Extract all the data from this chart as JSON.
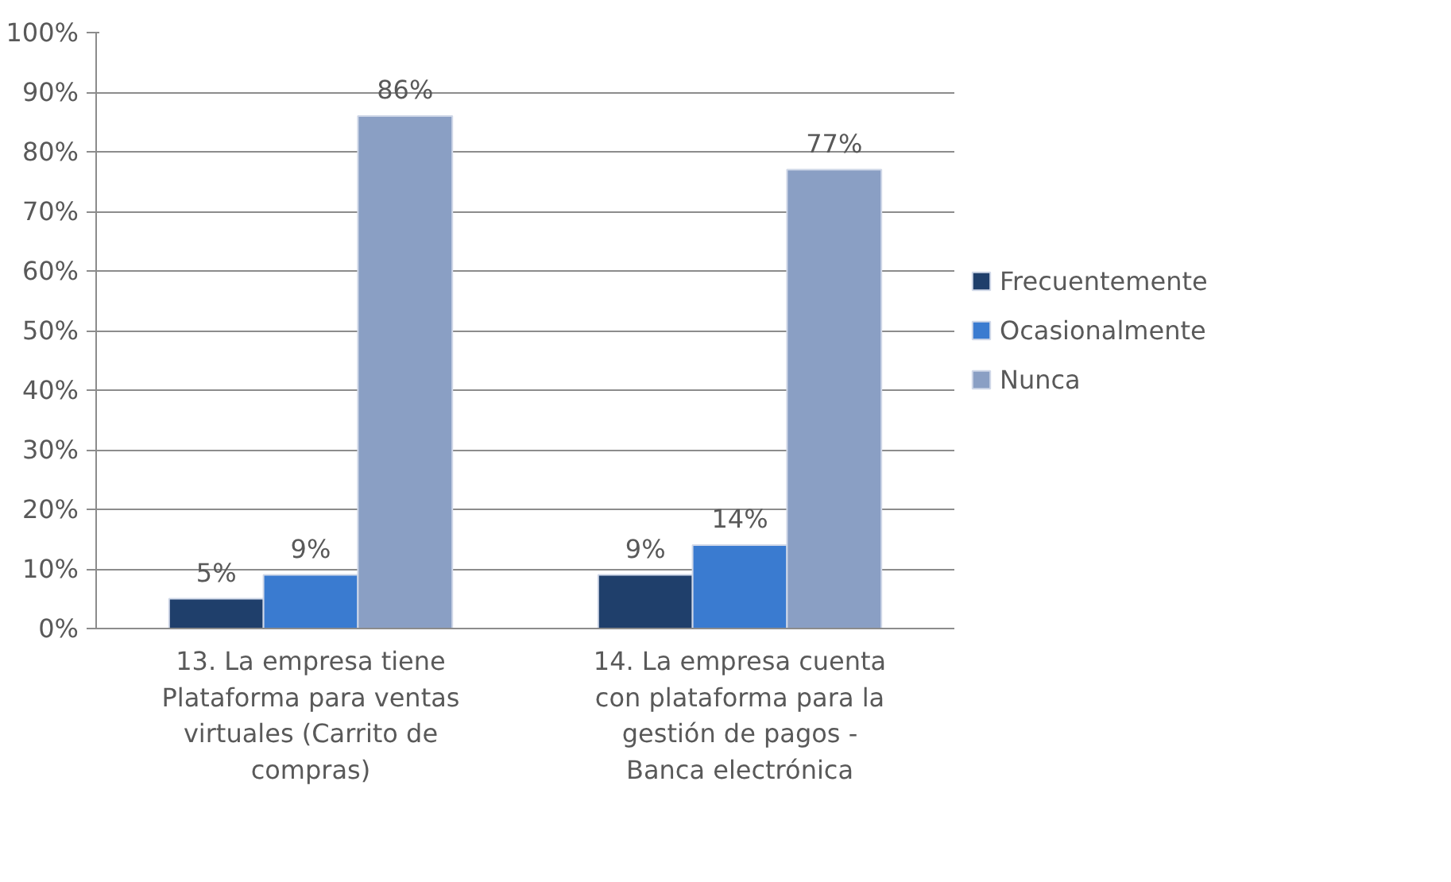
{
  "chart_data": {
    "type": "bar",
    "categories": [
      "13. La empresa tiene Plataforma para ventas virtuales (Carrito de compras)",
      "14. La empresa cuenta con plataforma para la gestión de pagos - Banca electrónica"
    ],
    "series": [
      {
        "name": "Frecuentemente",
        "color": "#1f3f6b",
        "values": [
          5,
          9
        ],
        "value_labels": [
          "5%",
          "9%"
        ]
      },
      {
        "name": "Ocasionalmente",
        "color": "#3a7bd0",
        "values": [
          9,
          14
        ],
        "value_labels": [
          "9%",
          "14%"
        ]
      },
      {
        "name": "Nunca",
        "color": "#8a9fc4",
        "values": [
          86,
          77
        ],
        "value_labels": [
          "86%",
          "77%"
        ]
      }
    ],
    "ylim": [
      0,
      100
    ],
    "yticks": [
      {
        "value": 0,
        "label": "0%"
      },
      {
        "value": 10,
        "label": "10%"
      },
      {
        "value": 20,
        "label": "20%"
      },
      {
        "value": 30,
        "label": "30%"
      },
      {
        "value": 40,
        "label": "40%"
      },
      {
        "value": 50,
        "label": "50%"
      },
      {
        "value": 60,
        "label": "60%"
      },
      {
        "value": 70,
        "label": "70%"
      },
      {
        "value": 80,
        "label": "80%"
      },
      {
        "value": 90,
        "label": "90%"
      },
      {
        "value": 100,
        "label": "100%"
      }
    ],
    "grid": "y",
    "legend": "right"
  }
}
